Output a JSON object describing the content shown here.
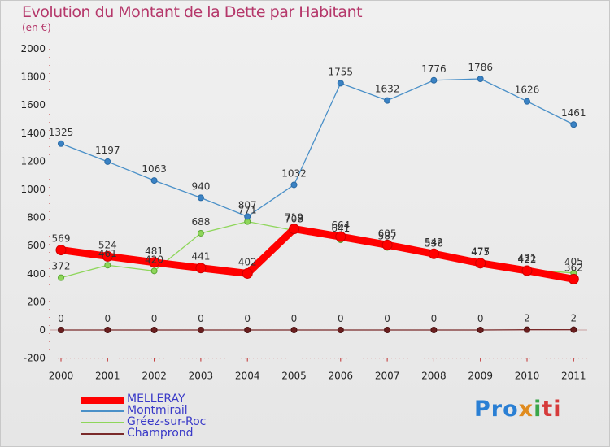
{
  "header": {
    "title": "Evolution du Montant de la Dette par Habitant",
    "unit": "(en €)"
  },
  "chart_data": {
    "type": "line",
    "title": "Evolution du Montant de la Dette par Habitant",
    "subtitle": "(en €)",
    "xlabel": "",
    "ylabel": "",
    "x": [
      "2000",
      "2001",
      "2002",
      "2003",
      "2004",
      "2005",
      "2006",
      "2007",
      "2008",
      "2009",
      "2010",
      "2011"
    ],
    "ylim": [
      -200,
      2000
    ],
    "yticks": [
      -200,
      0,
      200,
      400,
      600,
      800,
      1000,
      1200,
      1400,
      1600,
      1800,
      2000
    ],
    "grid": false,
    "legend_position": "bottom-left",
    "series": [
      {
        "name": "MELLERAY",
        "color": "#ff0000",
        "values": [
          569,
          524,
          481,
          441,
          402,
          719,
          664,
          605,
          542,
          475,
          422,
          362
        ]
      },
      {
        "name": "Montmirail",
        "color": "#4a90c8",
        "values": [
          1325,
          1197,
          1063,
          940,
          807,
          1032,
          1755,
          1632,
          1776,
          1786,
          1626,
          1461
        ]
      },
      {
        "name": "Gréez-sur-Roc",
        "color": "#8ed65a",
        "values": [
          372,
          461,
          420,
          688,
          771,
          708,
          641,
          587,
          536,
          477,
          431,
          405
        ]
      },
      {
        "name": "Champrond",
        "color": "#7a2a2a",
        "values": [
          0,
          0,
          0,
          0,
          0,
          0,
          0,
          0,
          0,
          0,
          2,
          2
        ]
      }
    ]
  },
  "logo": {
    "parts": [
      "Pro",
      "x",
      "i",
      "ti"
    ]
  }
}
